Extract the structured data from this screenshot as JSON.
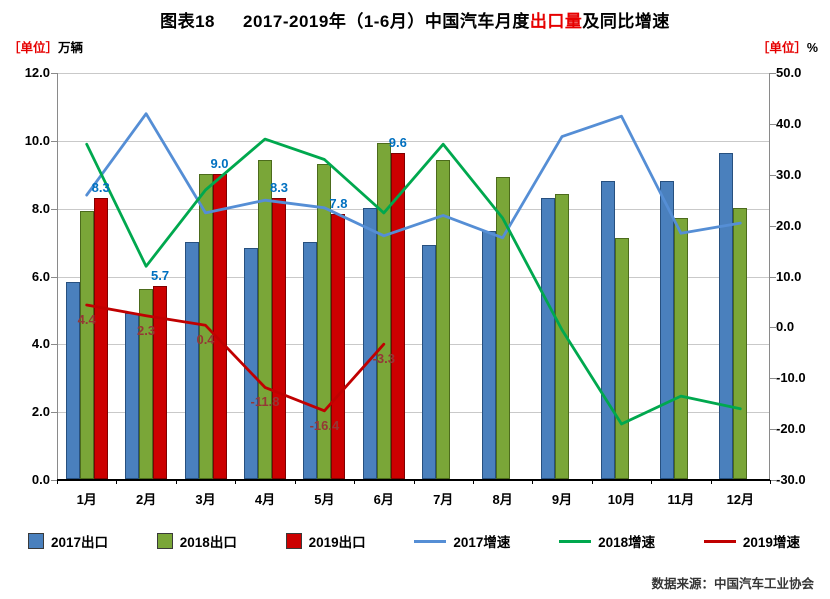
{
  "title": {
    "prefix": "图表18",
    "before": "2017-2019年（1-6月）中国汽车月度",
    "highlight": "出口量",
    "after": "及同比增速"
  },
  "units": {
    "left_bracket": "［单位］",
    "left_text": "万辆",
    "right_bracket": "［单位］",
    "right_text": "%"
  },
  "source": "数据来源：中国汽车工业协会",
  "chart_data": {
    "type": "bar+line",
    "title": "2017-2019年（1-6月）中国汽车月度出口量及同比增速",
    "categories": [
      "1月",
      "2月",
      "3月",
      "4月",
      "5月",
      "6月",
      "7月",
      "8月",
      "9月",
      "10月",
      "11月",
      "12月"
    ],
    "left_axis": {
      "label": "万辆",
      "min": 0,
      "max": 12,
      "ticks": [
        "12.0",
        "10.0",
        "8.0",
        "6.0",
        "4.0",
        "2.0",
        "0.0"
      ]
    },
    "right_axis": {
      "label": "%",
      "min": -30,
      "max": 50,
      "ticks": [
        "50.0",
        "40.0",
        "30.0",
        "20.0",
        "10.0",
        "0.0",
        "-10.0",
        "-20.0",
        "-30.0"
      ]
    },
    "grid": true,
    "legend_position": "bottom",
    "bar_series": [
      {
        "name": "2017出口",
        "color": "#4a80bd",
        "border": "#27507f",
        "values": [
          5.8,
          4.9,
          7.0,
          6.8,
          7.0,
          8.0,
          6.9,
          7.3,
          8.3,
          8.8,
          8.8,
          9.6
        ]
      },
      {
        "name": "2018出口",
        "color": "#7aa638",
        "border": "#4c6b1c",
        "values": [
          7.9,
          5.6,
          9.0,
          9.4,
          9.3,
          9.9,
          9.4,
          8.9,
          8.4,
          7.1,
          7.7,
          8.0
        ]
      },
      {
        "name": "2019出口",
        "color": "#cc0000",
        "border": "#7f0000",
        "values": [
          8.3,
          5.7,
          9.0,
          8.3,
          7.8,
          9.6,
          null,
          null,
          null,
          null,
          null,
          null
        ]
      }
    ],
    "line_series": [
      {
        "name": "2017增速",
        "color": "#558ed5",
        "values": [
          26,
          42,
          22.5,
          25,
          23.5,
          18,
          22,
          17.6,
          37.5,
          41.5,
          18.5,
          20.5
        ]
      },
      {
        "name": "2018增速",
        "color": "#00a84e",
        "values": [
          36,
          12,
          27,
          37,
          33,
          22.5,
          36,
          21.5,
          -0.5,
          -19,
          -13.5,
          -16
        ]
      },
      {
        "name": "2019增速",
        "color": "#c00000",
        "values": [
          4.4,
          2.3,
          0.4,
          -11.8,
          -16.4,
          -3.3,
          null,
          null,
          null,
          null,
          null,
          null
        ]
      }
    ],
    "bar_labels": {
      "series": "2019出口",
      "color": "#0070c0",
      "values": [
        "8.3",
        "5.7",
        "9.0",
        "8.3",
        "7.8",
        "9.6"
      ]
    },
    "line_labels": {
      "series": "2019增速",
      "color": "#953735",
      "values": [
        "4.4",
        "2.3",
        "0.4",
        "-11.8",
        "-16.4",
        "-3.3"
      ]
    },
    "legend": [
      {
        "label": "2017出口",
        "type": "square",
        "color": "#4a80bd"
      },
      {
        "label": "2018出口",
        "type": "square",
        "color": "#7aa638"
      },
      {
        "label": "2019出口",
        "type": "square",
        "color": "#cc0000"
      },
      {
        "label": "2017增速",
        "type": "line",
        "color": "#558ed5"
      },
      {
        "label": "2018增速",
        "type": "line",
        "color": "#00a84e"
      },
      {
        "label": "2019增速",
        "type": "line",
        "color": "#c00000"
      }
    ]
  }
}
